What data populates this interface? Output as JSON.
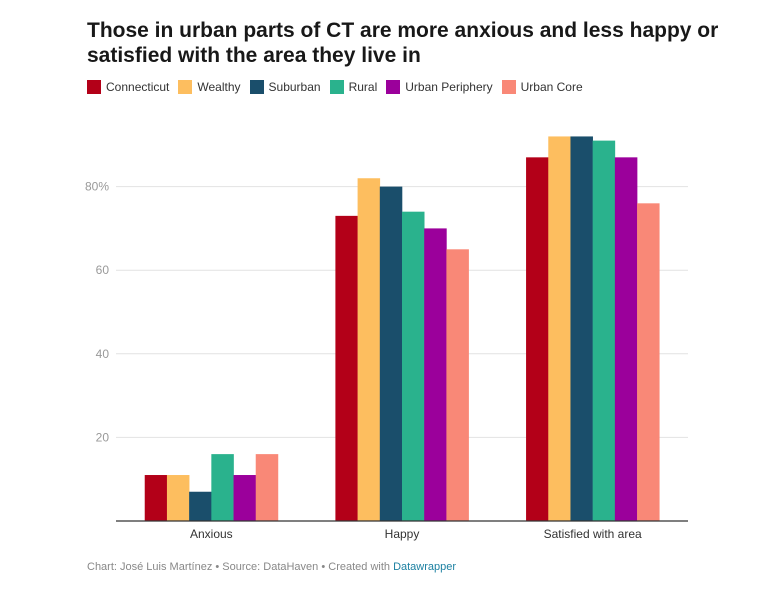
{
  "chart_data": {
    "type": "bar",
    "title": "Those in urban parts of CT are more anxious and less happy or satisfied with the area they live in",
    "categories": [
      "Anxious",
      "Happy",
      "Satisfied with area"
    ],
    "series": [
      {
        "name": "Connecticut",
        "color": "#b30018",
        "values": [
          11,
          73,
          87
        ]
      },
      {
        "name": "Wealthy",
        "color": "#fdbe5f",
        "values": [
          11,
          82,
          92
        ]
      },
      {
        "name": "Suburban",
        "color": "#1a4e6b",
        "values": [
          7,
          80,
          92
        ]
      },
      {
        "name": "Rural",
        "color": "#2ab28d",
        "values": [
          16,
          74,
          91
        ]
      },
      {
        "name": "Urban Periphery",
        "color": "#9b009b",
        "values": [
          11,
          70,
          87
        ]
      },
      {
        "name": "Urban Core",
        "color": "#f98877",
        "values": [
          16,
          65,
          76
        ]
      }
    ],
    "yticks": [
      {
        "v": 20,
        "label": "20"
      },
      {
        "v": 40,
        "label": "40"
      },
      {
        "v": 60,
        "label": "60"
      },
      {
        "v": 80,
        "label": "80%"
      }
    ],
    "ylim": [
      0,
      100
    ],
    "grid": true,
    "legend": "top-left"
  },
  "footer": {
    "text": "Chart: José Luis Martínez • Source: DataHaven • Created with ",
    "link": "Datawrapper"
  }
}
